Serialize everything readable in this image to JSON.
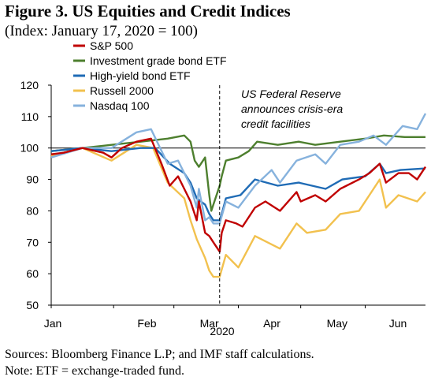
{
  "title": "Figure 3. US Equities and Credit Indices",
  "subtitle": "(Index: January 17, 2020 = 100)",
  "sources": "Sources: Bloomberg Finance L.P; and IMF staff calculations.",
  "note": "Note: ETF = exchange-traded fund.",
  "chart_data": {
    "type": "line",
    "x_start": "2020-01-02",
    "x_end": "2020-06-30",
    "ylim": [
      50,
      120
    ],
    "yticks": [
      50,
      60,
      70,
      80,
      90,
      100,
      110,
      120
    ],
    "xticks": [
      {
        "label": "Jan",
        "date": "2020-01-01"
      },
      {
        "label": "Feb",
        "date": "2020-02-01"
      },
      {
        "label": "Mar",
        "date": "2020-03-01"
      },
      {
        "label": "Apr",
        "date": "2020-04-01"
      },
      {
        "label": "May",
        "date": "2020-05-01"
      },
      {
        "label": "Jun",
        "date": "2020-06-01"
      }
    ],
    "year_label": "2020",
    "reference_line": 100,
    "event": {
      "date": "2020-03-23",
      "text": [
        "US Federal Reserve",
        "announces crisis-era",
        "credit facilities"
      ]
    },
    "legend_position": "top-left",
    "series": [
      {
        "name": "S&P 500",
        "color": "#c00000",
        "points": [
          [
            "2020-01-02",
            98
          ],
          [
            "2020-01-08",
            98.5
          ],
          [
            "2020-01-17",
            100
          ],
          [
            "2020-01-27",
            98.5
          ],
          [
            "2020-01-31",
            97
          ],
          [
            "2020-02-05",
            100
          ],
          [
            "2020-02-12",
            102
          ],
          [
            "2020-02-19",
            103
          ],
          [
            "2020-02-24",
            95
          ],
          [
            "2020-02-28",
            88
          ],
          [
            "2020-03-03",
            91
          ],
          [
            "2020-03-09",
            83
          ],
          [
            "2020-03-12",
            77
          ],
          [
            "2020-03-13",
            83
          ],
          [
            "2020-03-16",
            73
          ],
          [
            "2020-03-18",
            72
          ],
          [
            "2020-03-20",
            70
          ],
          [
            "2020-03-23",
            67
          ],
          [
            "2020-03-24",
            73
          ],
          [
            "2020-03-26",
            77
          ],
          [
            "2020-03-31",
            76
          ],
          [
            "2020-04-03",
            75
          ],
          [
            "2020-04-09",
            81
          ],
          [
            "2020-04-14",
            83
          ],
          [
            "2020-04-21",
            80
          ],
          [
            "2020-04-29",
            86
          ],
          [
            "2020-05-01",
            83
          ],
          [
            "2020-05-08",
            85
          ],
          [
            "2020-05-13",
            83
          ],
          [
            "2020-05-20",
            87
          ],
          [
            "2020-05-29",
            90
          ],
          [
            "2020-06-03",
            92
          ],
          [
            "2020-06-08",
            95
          ],
          [
            "2020-06-11",
            89
          ],
          [
            "2020-06-17",
            92
          ],
          [
            "2020-06-22",
            92
          ],
          [
            "2020-06-26",
            90
          ],
          [
            "2020-06-30",
            94
          ]
        ]
      },
      {
        "name": "Investment grade bond ETF",
        "color": "#4d7f2e",
        "points": [
          [
            "2020-01-02",
            99
          ],
          [
            "2020-01-17",
            100
          ],
          [
            "2020-01-31",
            101
          ],
          [
            "2020-02-14",
            102
          ],
          [
            "2020-02-27",
            103
          ],
          [
            "2020-03-06",
            104
          ],
          [
            "2020-03-09",
            102
          ],
          [
            "2020-03-11",
            96
          ],
          [
            "2020-03-13",
            94
          ],
          [
            "2020-03-16",
            97
          ],
          [
            "2020-03-18",
            85
          ],
          [
            "2020-03-19",
            80
          ],
          [
            "2020-03-20",
            82
          ],
          [
            "2020-03-23",
            88
          ],
          [
            "2020-03-24",
            91
          ],
          [
            "2020-03-26",
            96
          ],
          [
            "2020-04-01",
            97
          ],
          [
            "2020-04-06",
            99
          ],
          [
            "2020-04-10",
            102
          ],
          [
            "2020-04-20",
            101
          ],
          [
            "2020-04-30",
            102
          ],
          [
            "2020-05-08",
            101
          ],
          [
            "2020-05-20",
            102
          ],
          [
            "2020-06-01",
            103
          ],
          [
            "2020-06-10",
            104
          ],
          [
            "2020-06-20",
            103.5
          ],
          [
            "2020-06-30",
            103.5
          ]
        ]
      },
      {
        "name": "High-yield bond ETF",
        "color": "#1f6bb5",
        "points": [
          [
            "2020-01-02",
            99
          ],
          [
            "2020-01-17",
            100
          ],
          [
            "2020-01-31",
            99
          ],
          [
            "2020-02-14",
            100
          ],
          [
            "2020-02-21",
            100
          ],
          [
            "2020-02-28",
            95
          ],
          [
            "2020-03-06",
            92
          ],
          [
            "2020-03-09",
            89
          ],
          [
            "2020-03-12",
            84
          ],
          [
            "2020-03-16",
            82
          ],
          [
            "2020-03-18",
            79
          ],
          [
            "2020-03-20",
            77
          ],
          [
            "2020-03-23",
            77
          ],
          [
            "2020-03-24",
            79
          ],
          [
            "2020-03-26",
            84
          ],
          [
            "2020-04-02",
            85
          ],
          [
            "2020-04-09",
            90
          ],
          [
            "2020-04-20",
            88
          ],
          [
            "2020-04-30",
            89
          ],
          [
            "2020-05-13",
            87
          ],
          [
            "2020-05-21",
            90
          ],
          [
            "2020-06-01",
            91
          ],
          [
            "2020-06-08",
            95
          ],
          [
            "2020-06-11",
            92
          ],
          [
            "2020-06-18",
            93
          ],
          [
            "2020-06-30",
            93.5
          ]
        ]
      },
      {
        "name": "Russell 2000",
        "color": "#f2c14e",
        "points": [
          [
            "2020-01-02",
            97.5
          ],
          [
            "2020-01-17",
            100
          ],
          [
            "2020-01-31",
            96
          ],
          [
            "2020-02-12",
            101
          ],
          [
            "2020-02-20",
            100
          ],
          [
            "2020-02-27",
            89
          ],
          [
            "2020-03-06",
            84
          ],
          [
            "2020-03-09",
            77
          ],
          [
            "2020-03-12",
            71
          ],
          [
            "2020-03-16",
            65
          ],
          [
            "2020-03-18",
            61
          ],
          [
            "2020-03-20",
            59
          ],
          [
            "2020-03-23",
            59
          ],
          [
            "2020-03-26",
            66
          ],
          [
            "2020-04-01",
            62
          ],
          [
            "2020-04-09",
            72
          ],
          [
            "2020-04-21",
            68
          ],
          [
            "2020-04-29",
            76
          ],
          [
            "2020-05-04",
            73
          ],
          [
            "2020-05-13",
            74
          ],
          [
            "2020-05-20",
            79
          ],
          [
            "2020-05-29",
            80
          ],
          [
            "2020-06-03",
            85
          ],
          [
            "2020-06-08",
            90
          ],
          [
            "2020-06-11",
            81
          ],
          [
            "2020-06-17",
            85
          ],
          [
            "2020-06-26",
            83
          ],
          [
            "2020-06-30",
            86
          ]
        ]
      },
      {
        "name": "Nasdaq 100",
        "color": "#86b2dd",
        "points": [
          [
            "2020-01-02",
            97
          ],
          [
            "2020-01-17",
            100
          ],
          [
            "2020-01-31",
            100
          ],
          [
            "2020-02-12",
            105
          ],
          [
            "2020-02-19",
            106
          ],
          [
            "2020-02-27",
            95
          ],
          [
            "2020-03-03",
            96
          ],
          [
            "2020-03-09",
            88
          ],
          [
            "2020-03-12",
            81
          ],
          [
            "2020-03-13",
            87
          ],
          [
            "2020-03-16",
            77
          ],
          [
            "2020-03-18",
            78
          ],
          [
            "2020-03-20",
            76
          ],
          [
            "2020-03-23",
            76
          ],
          [
            "2020-03-26",
            83
          ],
          [
            "2020-04-01",
            81
          ],
          [
            "2020-04-09",
            88
          ],
          [
            "2020-04-17",
            93
          ],
          [
            "2020-04-21",
            89
          ],
          [
            "2020-04-29",
            96
          ],
          [
            "2020-05-08",
            98
          ],
          [
            "2020-05-13",
            95
          ],
          [
            "2020-05-20",
            101
          ],
          [
            "2020-05-29",
            102
          ],
          [
            "2020-06-05",
            104
          ],
          [
            "2020-06-11",
            101
          ],
          [
            "2020-06-19",
            107
          ],
          [
            "2020-06-26",
            106
          ],
          [
            "2020-06-30",
            111
          ]
        ]
      }
    ]
  }
}
